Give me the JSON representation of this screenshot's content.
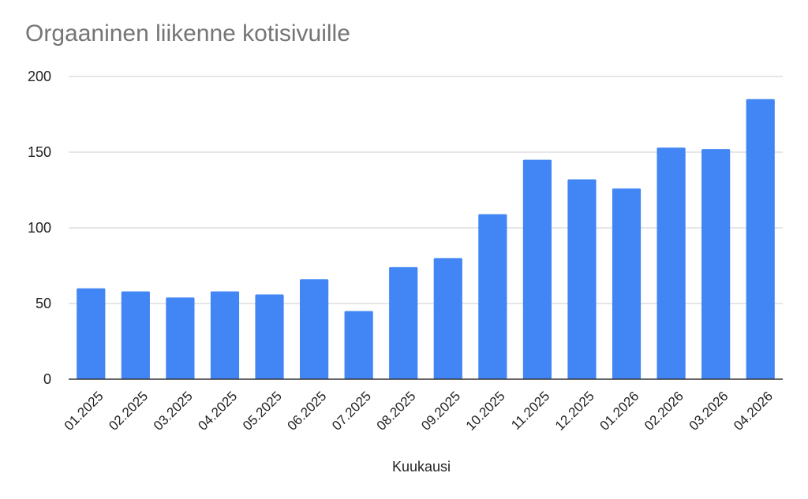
{
  "chart_data": {
    "type": "bar",
    "title": "Orgaaninen liikenne kotisivuille",
    "xlabel": "Kuukausi",
    "ylabel": "",
    "categories": [
      "01.2025",
      "02.2025",
      "03.2025",
      "04.2025",
      "05.2025",
      "06.2025",
      "07.2025",
      "08.2025",
      "09.2025",
      "10.2025",
      "11.2025",
      "12.2025",
      "01.2026",
      "02.2026",
      "03.2026",
      "04.2026"
    ],
    "values": [
      60,
      58,
      54,
      58,
      56,
      66,
      45,
      74,
      80,
      109,
      145,
      132,
      126,
      153,
      152,
      185
    ],
    "ylim": [
      0,
      200
    ],
    "yticks": [
      0,
      50,
      100,
      150,
      200
    ],
    "grid": true,
    "legend": "none",
    "colors": {
      "bar": "#4285f4",
      "grid": "#cccccc",
      "axis": "#333333",
      "title": "#757575"
    }
  }
}
